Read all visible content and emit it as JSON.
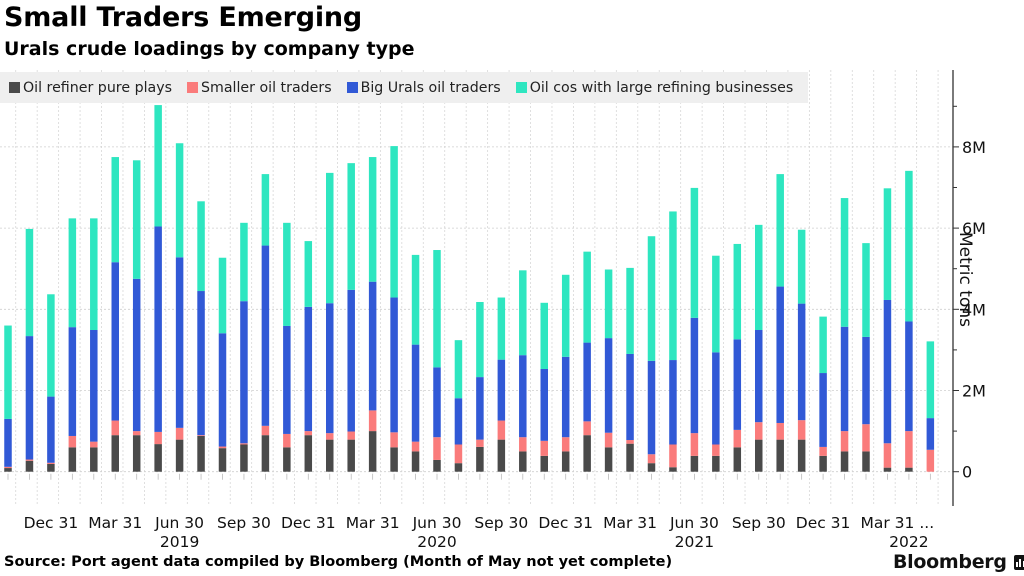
{
  "header": {
    "title": "Small Traders Emerging",
    "subtitle": "Urals crude loadings by company type"
  },
  "legend": [
    {
      "label": "Oil refiner pure plays",
      "color": "#4a4a4a"
    },
    {
      "label": "Smaller oil traders",
      "color": "#fa7b7b"
    },
    {
      "label": "Big Urals oil traders",
      "color": "#3159d6"
    },
    {
      "label": "Oil cos with large refining businesses",
      "color": "#2ee6c0"
    }
  ],
  "footer": {
    "source": "Source: Port agent data compiled by Bloomberg (Month of May not yet complete)",
    "brand": "Bloomberg"
  },
  "chart_data": {
    "type": "bar",
    "stacked": true,
    "title": "Small Traders Emerging",
    "subtitle": "Urals crude loadings by company type",
    "xlabel": "",
    "ylabel": "Metric tons",
    "ylim": [
      0,
      9.9
    ],
    "y_unit": "M",
    "y_axis_position": "right",
    "yticks": [
      0,
      2,
      4,
      6,
      8
    ],
    "ytick_labels": [
      "0",
      "2M",
      "4M",
      "6M",
      "8M"
    ],
    "grid": true,
    "legend_position": "top",
    "categories": [
      "Oct 2018",
      "Nov 2018",
      "Dec 2018",
      "Jan 2019",
      "Feb 2019",
      "Mar 2019",
      "Apr 2019",
      "May 2019",
      "Jun 2019",
      "Jul 2019",
      "Aug 2019",
      "Sep 2019",
      "Oct 2019",
      "Nov 2019",
      "Dec 2019",
      "Jan 2020",
      "Feb 2020",
      "Mar 2020",
      "Apr 2020",
      "May 2020",
      "Jun 2020",
      "Jul 2020",
      "Aug 2020",
      "Sep 2020",
      "Oct 2020",
      "Nov 2020",
      "Dec 2020",
      "Jan 2021",
      "Feb 2021",
      "Mar 2021",
      "Apr 2021",
      "May 2021",
      "Jun 2021",
      "Jul 2021",
      "Aug 2021",
      "Sep 2021",
      "Oct 2021",
      "Nov 2021",
      "Dec 2021",
      "Jan 2022",
      "Feb 2022",
      "Mar 2022",
      "Apr 2022",
      "May 2022"
    ],
    "xtick_labels": [
      {
        "index": 2,
        "label": "Dec 31"
      },
      {
        "index": 5,
        "label": "Mar 31"
      },
      {
        "index": 8,
        "label": "Jun 30"
      },
      {
        "index": 11,
        "label": "Sep 30"
      },
      {
        "index": 14,
        "label": "Dec 31"
      },
      {
        "index": 17,
        "label": "Mar 31"
      },
      {
        "index": 20,
        "label": "Jun 30"
      },
      {
        "index": 23,
        "label": "Sep 30"
      },
      {
        "index": 26,
        "label": "Dec 31"
      },
      {
        "index": 29,
        "label": "Mar 31"
      },
      {
        "index": 32,
        "label": "Jun 30"
      },
      {
        "index": 35,
        "label": "Sep 30"
      },
      {
        "index": 38,
        "label": "Dec 31"
      },
      {
        "index": 41,
        "label": "Mar 31"
      },
      {
        "index": 43,
        "label": "..."
      }
    ],
    "year_labels": [
      {
        "index": 8,
        "label": "2019"
      },
      {
        "index": 20,
        "label": "2020"
      },
      {
        "index": 32,
        "label": "2021"
      },
      {
        "index": 42,
        "label": "2022"
      }
    ],
    "series": [
      {
        "name": "Oil refiner pure plays",
        "color": "#4a4a4a",
        "values": [
          0.09,
          0.27,
          0.19,
          0.6,
          0.6,
          0.9,
          0.9,
          0.68,
          0.79,
          0.88,
          0.58,
          0.67,
          0.9,
          0.6,
          0.9,
          0.79,
          0.79,
          1.0,
          0.6,
          0.5,
          0.29,
          0.21,
          0.61,
          0.79,
          0.5,
          0.39,
          0.5,
          0.9,
          0.6,
          0.69,
          0.21,
          0.11,
          0.39,
          0.39,
          0.6,
          0.79,
          0.79,
          0.79,
          0.39,
          0.5,
          0.5,
          0.1,
          0.1,
          0.0
        ]
      },
      {
        "name": "Smaller oil traders",
        "color": "#fa7b7b",
        "values": [
          0.03,
          0.03,
          0.03,
          0.28,
          0.14,
          0.36,
          0.1,
          0.3,
          0.29,
          0.02,
          0.04,
          0.03,
          0.23,
          0.33,
          0.1,
          0.16,
          0.2,
          0.51,
          0.37,
          0.24,
          0.56,
          0.46,
          0.18,
          0.47,
          0.35,
          0.37,
          0.35,
          0.34,
          0.36,
          0.09,
          0.22,
          0.56,
          0.56,
          0.28,
          0.43,
          0.43,
          0.41,
          0.48,
          0.22,
          0.5,
          0.67,
          0.6,
          0.9,
          0.54
        ]
      },
      {
        "name": "Big Urals oil traders",
        "color": "#3159d6",
        "values": [
          1.18,
          3.04,
          1.63,
          2.68,
          2.75,
          3.9,
          3.75,
          5.06,
          4.2,
          3.55,
          2.79,
          3.5,
          4.44,
          2.66,
          3.06,
          3.2,
          3.49,
          3.17,
          3.32,
          2.39,
          1.72,
          1.14,
          1.54,
          1.5,
          2.02,
          1.77,
          1.98,
          1.94,
          2.33,
          2.12,
          2.3,
          2.08,
          2.84,
          2.27,
          2.23,
          2.27,
          3.36,
          2.87,
          1.82,
          2.57,
          2.15,
          3.53,
          2.7,
          0.78
        ]
      },
      {
        "name": "Oil cos with large refining businesses",
        "color": "#2ee6c0",
        "values": [
          2.3,
          2.64,
          2.52,
          2.68,
          2.75,
          2.59,
          2.92,
          2.99,
          2.81,
          2.21,
          1.86,
          1.93,
          1.76,
          2.54,
          1.62,
          3.21,
          3.12,
          3.07,
          3.73,
          2.21,
          2.89,
          1.43,
          1.85,
          1.53,
          2.09,
          1.63,
          2.02,
          2.24,
          1.69,
          2.12,
          3.07,
          3.66,
          3.2,
          2.38,
          2.35,
          2.59,
          2.77,
          1.82,
          1.39,
          3.17,
          2.31,
          2.75,
          3.71,
          1.89
        ]
      }
    ],
    "totals": [
      3.6,
      5.98,
      4.37,
      6.24,
      6.24,
      7.75,
      7.67,
      9.03,
      8.09,
      6.66,
      5.27,
      6.13,
      7.33,
      6.13,
      5.68,
      7.36,
      7.6,
      7.75,
      8.02,
      5.34,
      5.46,
      3.24,
      4.18,
      4.29,
      4.96,
      4.16,
      4.85,
      5.42,
      4.98,
      5.02,
      5.8,
      6.41,
      6.99,
      5.32,
      5.61,
      6.08,
      7.33,
      5.96,
      3.82,
      6.74,
      5.63,
      6.98,
      7.41,
      3.21
    ]
  }
}
